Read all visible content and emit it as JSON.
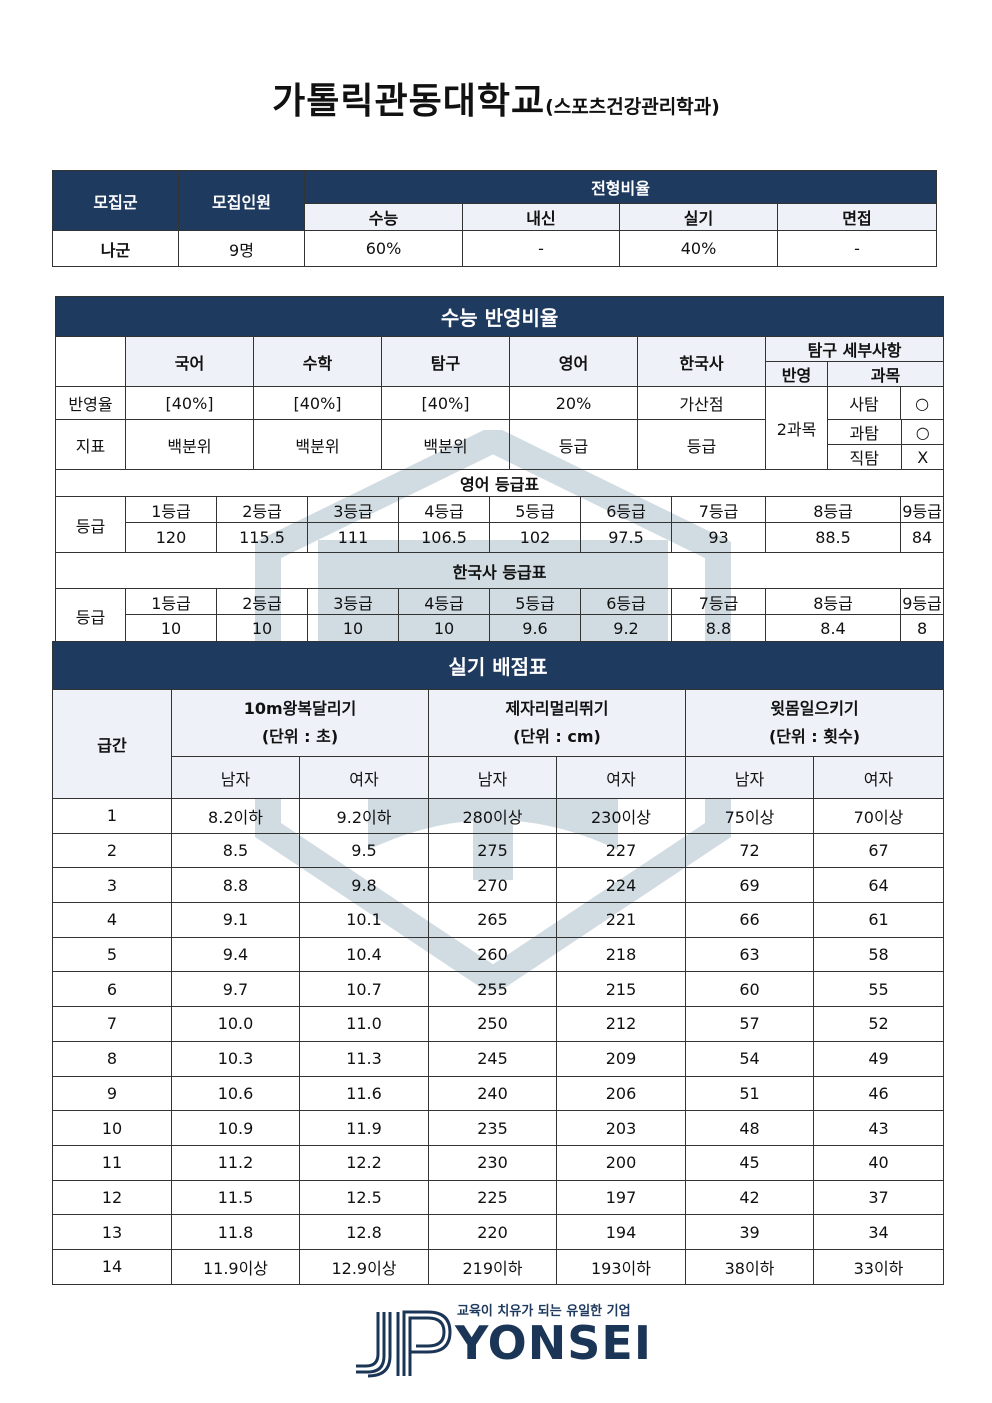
{
  "title": {
    "main": "가톨릭관동대학교",
    "sub": "(스포츠건강관리학과)"
  },
  "admission": {
    "headers": {
      "group": "모집군",
      "quota": "모집인원",
      "ratio": "전형비율"
    },
    "ratio_cols": [
      "수능",
      "내신",
      "실기",
      "면접"
    ],
    "row": {
      "group": "나군",
      "quota": "9명",
      "ratios": [
        "60%",
        "-",
        "40%",
        "-"
      ]
    }
  },
  "suneung": {
    "title": "수능 반영비율",
    "subjects": [
      "국어",
      "수학",
      "탐구",
      "영어",
      "한국사"
    ],
    "tamgu_detail": {
      "title": "탐구 세부사항",
      "col_reflect": "반영",
      "col_subject": "과목",
      "reflect_value": "2과목",
      "items": [
        {
          "name": "사탐",
          "mark": "○"
        },
        {
          "name": "과탐",
          "mark": "○"
        },
        {
          "name": "직탐",
          "mark": "X"
        }
      ]
    },
    "rows": [
      {
        "label": "반영율",
        "values": [
          "[40%]",
          "[40%]",
          "[40%]",
          "20%",
          "가산점"
        ]
      },
      {
        "label": "지표",
        "values": [
          "백분위",
          "백분위",
          "백분위",
          "등급",
          "등급"
        ]
      }
    ],
    "english_table": {
      "title": "영어 등급표",
      "label": "등급",
      "grades": [
        "1등급",
        "2등급",
        "3등급",
        "4등급",
        "5등급",
        "6등급",
        "7등급",
        "8등급",
        "9등급"
      ],
      "scores": [
        "120",
        "115.5",
        "111",
        "106.5",
        "102",
        "97.5",
        "93",
        "88.5",
        "84"
      ]
    },
    "history_table": {
      "title": "한국사 등급표",
      "label": "등급",
      "grades": [
        "1등급",
        "2등급",
        "3등급",
        "4등급",
        "5등급",
        "6등급",
        "7등급",
        "8등급",
        "9등급"
      ],
      "scores": [
        "10",
        "10",
        "10",
        "10",
        "9.6",
        "9.2",
        "8.8",
        "8.4",
        "8"
      ]
    }
  },
  "practical": {
    "title": "실기 배점표",
    "grade_header": "급간",
    "events": [
      {
        "name": "10m왕복달리기",
        "unit": "(단위 : 초)"
      },
      {
        "name": "제자리멀리뛰기",
        "unit": "(단위 : cm)"
      },
      {
        "name": "윗몸일으키기",
        "unit": "(단위 : 횟수)"
      }
    ],
    "gender": [
      "남자",
      "여자"
    ],
    "rows": [
      [
        "1",
        "8.2이하",
        "9.2이하",
        "280이상",
        "230이상",
        "75이상",
        "70이상"
      ],
      [
        "2",
        "8.5",
        "9.5",
        "275",
        "227",
        "72",
        "67"
      ],
      [
        "3",
        "8.8",
        "9.8",
        "270",
        "224",
        "69",
        "64"
      ],
      [
        "4",
        "9.1",
        "10.1",
        "265",
        "221",
        "66",
        "61"
      ],
      [
        "5",
        "9.4",
        "10.4",
        "260",
        "218",
        "63",
        "58"
      ],
      [
        "6",
        "9.7",
        "10.7",
        "255",
        "215",
        "60",
        "55"
      ],
      [
        "7",
        "10.0",
        "11.0",
        "250",
        "212",
        "57",
        "52"
      ],
      [
        "8",
        "10.3",
        "11.3",
        "245",
        "209",
        "54",
        "49"
      ],
      [
        "9",
        "10.6",
        "11.6",
        "240",
        "206",
        "51",
        "46"
      ],
      [
        "10",
        "10.9",
        "11.9",
        "235",
        "203",
        "48",
        "43"
      ],
      [
        "11",
        "11.2",
        "12.2",
        "230",
        "200",
        "45",
        "40"
      ],
      [
        "12",
        "11.5",
        "12.5",
        "225",
        "197",
        "42",
        "37"
      ],
      [
        "13",
        "11.8",
        "12.8",
        "220",
        "194",
        "39",
        "34"
      ],
      [
        "14",
        "11.9이상",
        "12.9이상",
        "219이하",
        "193이하",
        "38이하",
        "33이하"
      ]
    ]
  },
  "footer": {
    "tagline": "교육이 치유가 되는 유일한 기업",
    "brand": "YONSEI"
  },
  "colors": {
    "header_navy": "#1f3a5f",
    "subheader": "#eef1f7"
  }
}
